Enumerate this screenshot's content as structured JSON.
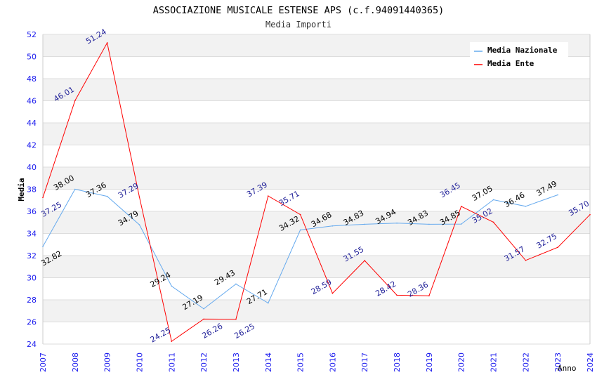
{
  "chart_data": {
    "type": "line",
    "title": "ASSOCIAZIONE MUSICALE ESTENSE APS (c.f.94091440365)",
    "subtitle": "Media Importi",
    "xlabel": "Anno",
    "ylabel": "Media",
    "ylim": [
      24,
      52
    ],
    "yticks": [
      24,
      26,
      28,
      30,
      32,
      34,
      36,
      38,
      40,
      42,
      44,
      46,
      48,
      50,
      52
    ],
    "x": [
      "2007",
      "2008",
      "2009",
      "2010",
      "2011",
      "2012",
      "2013",
      "2014",
      "2015",
      "2016",
      "2017",
      "2018",
      "2019",
      "2020",
      "2021",
      "2022",
      "2023",
      "2024"
    ],
    "grid": true,
    "legend_position": "top-right",
    "series": [
      {
        "name": "Media Nazionale",
        "color": "#66aaee",
        "label_color": "#000000",
        "values": [
          32.82,
          38.0,
          37.36,
          34.79,
          29.24,
          27.19,
          29.43,
          27.71,
          34.32,
          34.68,
          34.83,
          34.94,
          34.83,
          34.85,
          37.05,
          36.46,
          37.49,
          null
        ]
      },
      {
        "name": "Media Ente",
        "color": "#ff0000",
        "label_color": "#222299",
        "values": [
          37.25,
          46.01,
          51.24,
          37.29,
          24.25,
          26.26,
          26.25,
          37.39,
          35.71,
          28.59,
          31.55,
          28.42,
          28.36,
          36.45,
          35.02,
          31.57,
          32.75,
          35.7
        ]
      }
    ]
  }
}
